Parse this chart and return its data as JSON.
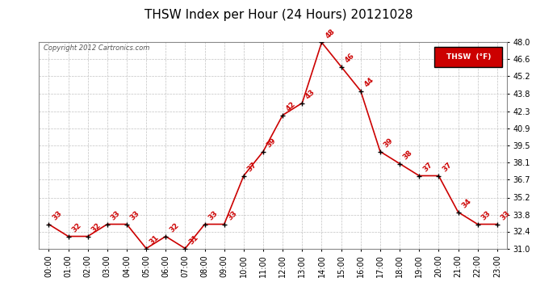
{
  "title": "THSW Index per Hour (24 Hours) 20121028",
  "copyright": "Copyright 2012 Cartronics.com",
  "legend_label": "THSW  (°F)",
  "hours": [
    0,
    1,
    2,
    3,
    4,
    5,
    6,
    7,
    8,
    9,
    10,
    11,
    12,
    13,
    14,
    15,
    16,
    17,
    18,
    19,
    20,
    21,
    22,
    23
  ],
  "hour_labels": [
    "00:00",
    "01:00",
    "02:00",
    "03:00",
    "04:00",
    "05:00",
    "06:00",
    "07:00",
    "08:00",
    "09:00",
    "10:00",
    "11:00",
    "12:00",
    "13:00",
    "14:00",
    "15:00",
    "16:00",
    "17:00",
    "18:00",
    "19:00",
    "20:00",
    "21:00",
    "22:00",
    "23:00"
  ],
  "values": [
    33,
    32,
    32,
    33,
    33,
    31,
    32,
    31,
    33,
    33,
    37,
    39,
    42,
    43,
    48,
    46,
    44,
    39,
    38,
    37,
    37,
    34,
    33,
    33
  ],
  "line_color": "#cc0000",
  "marker_color": "#000000",
  "ylim": [
    31.0,
    48.0
  ],
  "yticks": [
    31.0,
    32.4,
    33.8,
    35.2,
    36.7,
    38.1,
    39.5,
    40.9,
    42.3,
    43.8,
    45.2,
    46.6,
    48.0
  ],
  "bg_color": "#ffffff",
  "grid_color": "#bbbbbb",
  "title_fontsize": 11,
  "axis_fontsize": 7,
  "data_label_fontsize": 6.5,
  "legend_bg": "#cc0000",
  "legend_text_color": "#ffffff"
}
